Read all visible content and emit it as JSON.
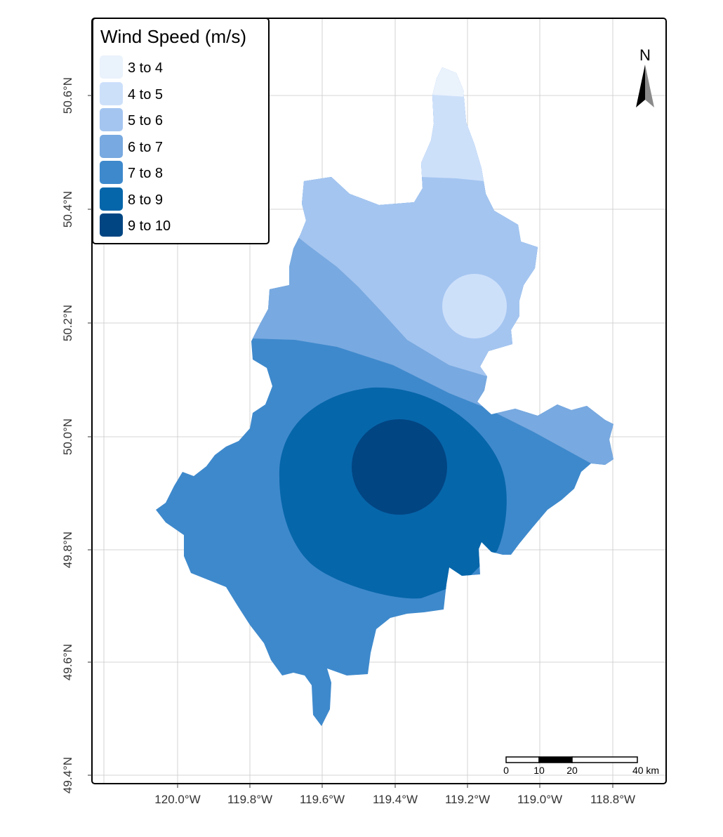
{
  "map": {
    "title": "Wind Speed (m/s)",
    "x_axis": {
      "ticks": [
        "120.0°W",
        "119.8°W",
        "119.6°W",
        "119.4°W",
        "119.2°W",
        "119.0°W",
        "118.8°W"
      ]
    },
    "y_axis": {
      "ticks": [
        "49.4°N",
        "49.6°N",
        "49.8°N",
        "50.0°N",
        "50.2°N",
        "50.4°N",
        "50.6°N"
      ]
    }
  },
  "legend": {
    "title": "Wind Speed (m/s)",
    "items": [
      {
        "label": "3 to 4",
        "color": "#eaf2fc"
      },
      {
        "label": "4 to 5",
        "color": "#cde0fa"
      },
      {
        "label": "5 to 6",
        "color": "#a4c5f0"
      },
      {
        "label": "6 to 7",
        "color": "#78a9e0"
      },
      {
        "label": "7 to 8",
        "color": "#3e89cc"
      },
      {
        "label": "8 to 9",
        "color": "#0666aa"
      },
      {
        "label": "9 to 10",
        "color": "#024583"
      }
    ]
  },
  "north_arrow": {
    "label": "N"
  },
  "scale_bar": {
    "labels": [
      "0",
      "10",
      "20",
      "40 km"
    ]
  },
  "colors": {
    "grid": "#c8c8c8",
    "panel_border": "#000000"
  }
}
